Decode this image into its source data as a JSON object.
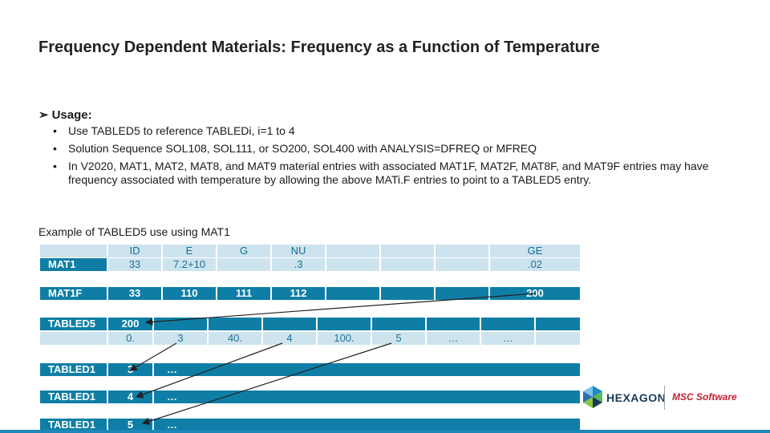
{
  "title": "Frequency Dependent Materials: Frequency as a Function of Temperature",
  "usage": {
    "heading": "Usage:",
    "bullets": [
      "Use TABLED5 to reference TABLEDi, i=1 to 4",
      "Solution Sequence SOL108, SOL111, or SO200, SOL400 with ANALYSIS=DFREQ or MFREQ",
      "In V2020, MAT1, MAT2, MAT8, and MAT9 material entries with associated MAT1F, MAT2F, MAT8F, and MAT9F entries may have frequency associated with temperature by allowing the above MATi.F entries to point to a TABLED5 entry."
    ]
  },
  "example_caption": "Example of TABLED5 use using MAT1",
  "tables": {
    "header": [
      "",
      "ID",
      "E",
      "G",
      "NU",
      "",
      "",
      "",
      "GE"
    ],
    "mat1": [
      "MAT1",
      "33",
      "7.2+10",
      "",
      ".3",
      "",
      "",
      "",
      ".02"
    ],
    "mat1f": [
      "MAT1F",
      "33",
      "110",
      "111",
      "112",
      "",
      "",
      "",
      "200"
    ],
    "tabled5_top": [
      "TABLED5",
      "200",
      "",
      "",
      "",
      "",
      "",
      "",
      "",
      ""
    ],
    "tabled5_bottom": [
      "",
      "0.",
      "3",
      "40.",
      "4",
      "100.",
      "5",
      "…",
      "…",
      ""
    ],
    "tabled1_a": [
      "TABLED1",
      "3",
      "…"
    ],
    "tabled1_b": [
      "TABLED1",
      "4",
      "…"
    ],
    "tabled1_c": [
      "TABLED1",
      "5",
      "…"
    ]
  },
  "logos": {
    "hexagon": "HEXAGON",
    "msc": "MSC Software"
  },
  "colors": {
    "table_blue": "#0f7ea6",
    "table_light": "#cde4ee",
    "arrow": "#222222"
  }
}
